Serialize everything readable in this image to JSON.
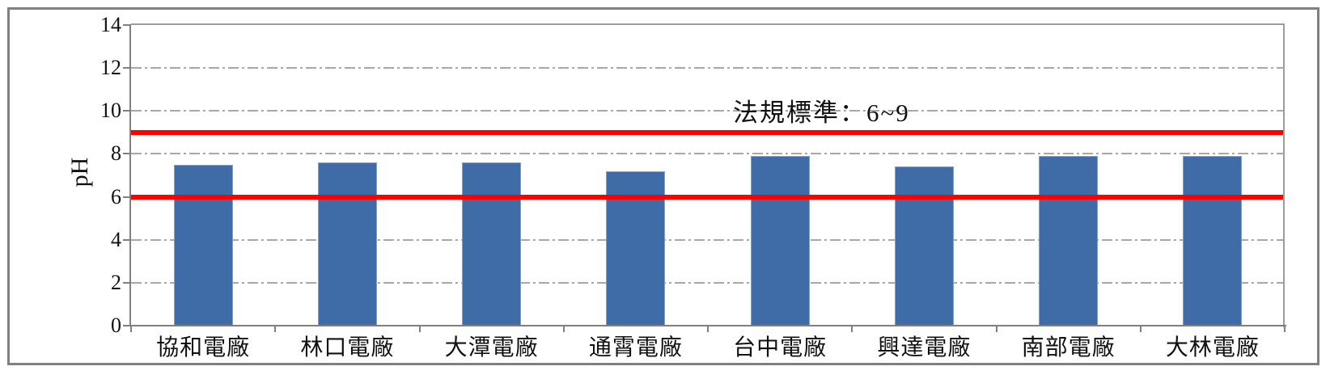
{
  "chart_data": {
    "type": "bar",
    "title": "",
    "xlabel": "",
    "ylabel": "pH",
    "categories": [
      "協和電廠",
      "林口電廠",
      "大潭電廠",
      "通霄電廠",
      "台中電廠",
      "興達電廠",
      "南部電廠",
      "大林電廠"
    ],
    "series": [
      {
        "name": "pH",
        "values": [
          7.5,
          7.6,
          7.6,
          7.2,
          7.9,
          7.4,
          7.9,
          7.9
        ]
      }
    ],
    "values": [
      7.5,
      7.6,
      7.6,
      7.2,
      7.9,
      7.4,
      7.9,
      7.9
    ],
    "ylim": [
      0,
      14
    ],
    "yticks": [
      0,
      2,
      4,
      6,
      8,
      10,
      12,
      14
    ],
    "grid": "horizontal dash-dot gridlines at even values",
    "legend": "none",
    "annotation": {
      "text": "法規標準：6~9"
    },
    "reference_lines": [
      {
        "value": 6,
        "color": "#FF0000"
      },
      {
        "value": 9,
        "color": "#FF0000"
      }
    ],
    "colors": {
      "bar": "#3F6CA6",
      "bar_edge": "#87A1C5",
      "reference_line": "#FF0000",
      "gridline": "#A8A8A8",
      "axis": "#808080",
      "figure_border": "#808080",
      "text": "#111111"
    }
  }
}
